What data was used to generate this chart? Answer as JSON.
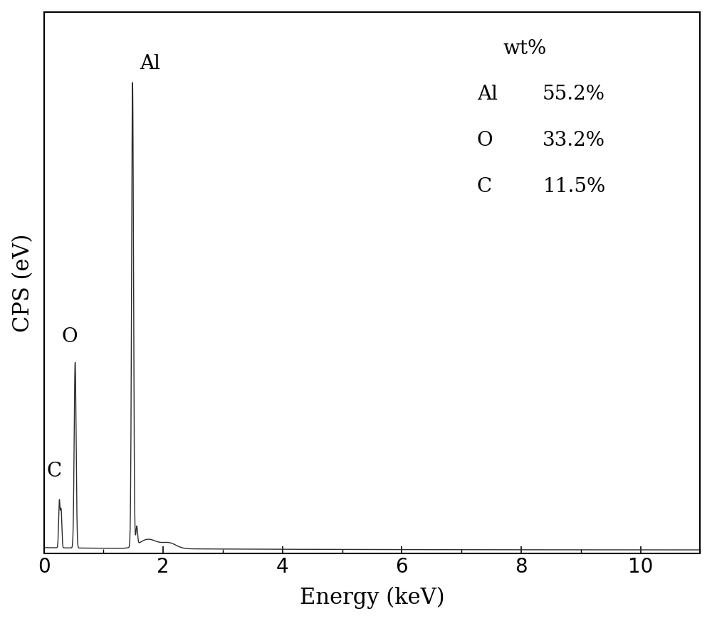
{
  "title": "",
  "xlabel": "Energy (keV)",
  "ylabel": "CPS (eV)",
  "xlim": [
    0,
    11.0
  ],
  "ylim": [
    0,
    1.15
  ],
  "xticks": [
    0,
    2,
    4,
    6,
    8,
    10
  ],
  "line_color": "#2b2b2b",
  "background_color": "#ffffff",
  "wt_header": "wt%",
  "wt_Al_label": "Al",
  "wt_Al_val": "55.2%",
  "wt_O_label": "O",
  "wt_O_val": "33.2%",
  "wt_C_label": "C",
  "wt_C_val": "11.5%",
  "xlabel_fontsize": 22,
  "ylabel_fontsize": 22,
  "tick_fontsize": 20,
  "annotation_fontsize": 20,
  "wt_fontsize": 20
}
